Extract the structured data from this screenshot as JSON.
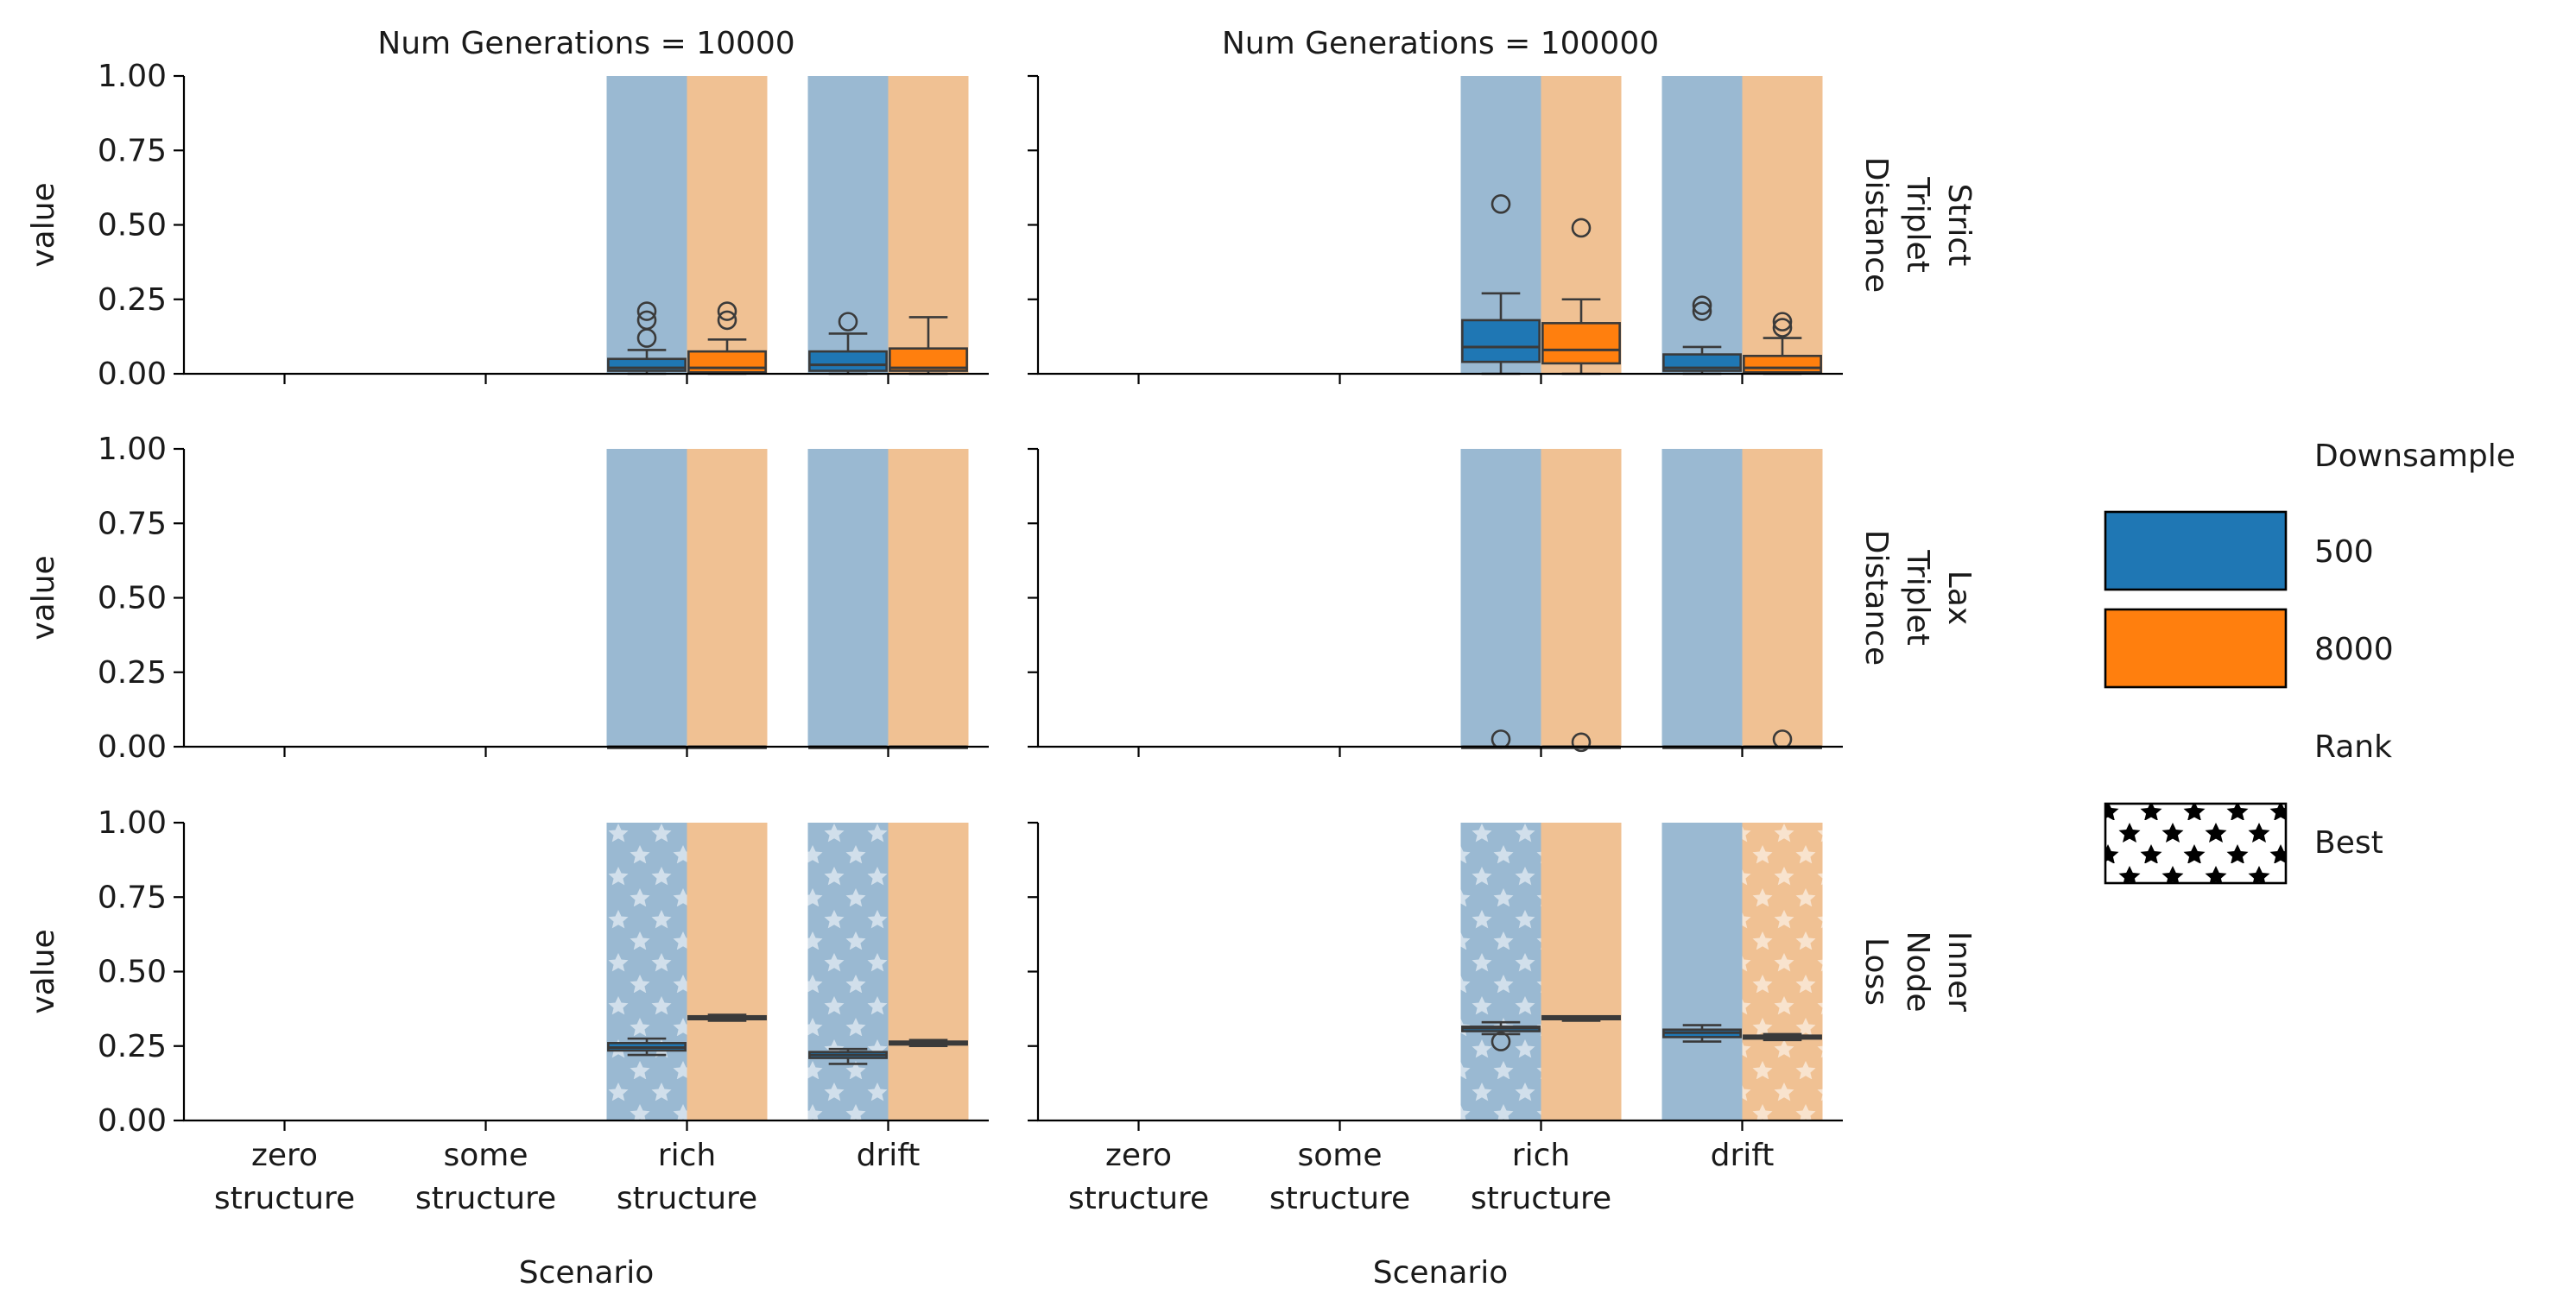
{
  "chart_data": {
    "type": "box",
    "layout": "facet-grid",
    "column_titles": [
      "Num Generations = 10000",
      "Num Generations = 100000"
    ],
    "row_titles": [
      [
        "Strict",
        "Triplet",
        "Distance"
      ],
      [
        "Lax",
        "Triplet",
        "Distance"
      ],
      [
        "Inner",
        "Node",
        "Loss"
      ]
    ],
    "xlabel": "Scenario",
    "ylabel": "value",
    "ylim": [
      0,
      1
    ],
    "yticks": [
      "0.00",
      "0.25",
      "0.50",
      "0.75",
      "1.00"
    ],
    "categories": [
      [
        "zero",
        "structure"
      ],
      [
        "some",
        "structure"
      ],
      [
        "rich",
        "structure"
      ],
      [
        "drift"
      ]
    ],
    "hue_values": [
      "500",
      "8000"
    ],
    "colors": {
      "500": "#1f77b4",
      "8000": "#ff7f0e",
      "bg500": "#9ab9d2",
      "bg8000": "#f0c193"
    },
    "legend": {
      "placement": "right",
      "hue_title": "Downsample",
      "hue_entries": [
        "500",
        "8000"
      ],
      "rank_title": "Rank",
      "rank_entries": [
        "Best"
      ]
    },
    "panels": [
      {
        "row": 0,
        "col": 0,
        "background": [
          2,
          3
        ],
        "star": [],
        "boxes": [
          {
            "cat": 2,
            "hue": 0,
            "q1": 0.01,
            "med": 0.02,
            "q3": 0.05,
            "lo": 0.0,
            "hi": 0.08,
            "fliers": [
              0.12,
              0.18,
              0.21
            ]
          },
          {
            "cat": 2,
            "hue": 1,
            "q1": 0.005,
            "med": 0.02,
            "q3": 0.075,
            "lo": 0.0,
            "hi": 0.115,
            "fliers": [
              0.18,
              0.21
            ]
          },
          {
            "cat": 3,
            "hue": 0,
            "q1": 0.01,
            "med": 0.03,
            "q3": 0.075,
            "lo": 0.0,
            "hi": 0.135,
            "fliers": [
              0.175
            ]
          },
          {
            "cat": 3,
            "hue": 1,
            "q1": 0.01,
            "med": 0.02,
            "q3": 0.085,
            "lo": 0.0,
            "hi": 0.19,
            "fliers": []
          }
        ]
      },
      {
        "row": 0,
        "col": 1,
        "background": [
          2,
          3
        ],
        "star": [],
        "boxes": [
          {
            "cat": 2,
            "hue": 0,
            "q1": 0.04,
            "med": 0.09,
            "q3": 0.18,
            "lo": 0.0,
            "hi": 0.27,
            "fliers": [
              0.57
            ]
          },
          {
            "cat": 2,
            "hue": 1,
            "q1": 0.035,
            "med": 0.08,
            "q3": 0.17,
            "lo": 0.0,
            "hi": 0.25,
            "fliers": [
              0.49
            ]
          },
          {
            "cat": 3,
            "hue": 0,
            "q1": 0.01,
            "med": 0.02,
            "q3": 0.065,
            "lo": 0.0,
            "hi": 0.09,
            "fliers": [
              0.21,
              0.23
            ]
          },
          {
            "cat": 3,
            "hue": 1,
            "q1": 0.005,
            "med": 0.02,
            "q3": 0.06,
            "lo": 0.0,
            "hi": 0.12,
            "fliers": [
              0.155,
              0.175
            ]
          }
        ]
      },
      {
        "row": 1,
        "col": 0,
        "background": [
          2,
          3
        ],
        "star": [],
        "boxes": [
          {
            "cat": 2,
            "hue": 0,
            "q1": 0.0,
            "med": 0.0,
            "q3": 0.0,
            "lo": 0.0,
            "hi": 0.0,
            "fliers": []
          },
          {
            "cat": 2,
            "hue": 1,
            "q1": 0.0,
            "med": 0.0,
            "q3": 0.0,
            "lo": 0.0,
            "hi": 0.0,
            "fliers": []
          },
          {
            "cat": 3,
            "hue": 0,
            "q1": 0.0,
            "med": 0.0,
            "q3": 0.0,
            "lo": 0.0,
            "hi": 0.0,
            "fliers": []
          },
          {
            "cat": 3,
            "hue": 1,
            "q1": 0.0,
            "med": 0.0,
            "q3": 0.0,
            "lo": 0.0,
            "hi": 0.0,
            "fliers": []
          }
        ]
      },
      {
        "row": 1,
        "col": 1,
        "background": [
          2,
          3
        ],
        "star": [],
        "boxes": [
          {
            "cat": 2,
            "hue": 0,
            "q1": 0.0,
            "med": 0.0,
            "q3": 0.0,
            "lo": 0.0,
            "hi": 0.0,
            "fliers": [
              0.025
            ]
          },
          {
            "cat": 2,
            "hue": 1,
            "q1": 0.0,
            "med": 0.0,
            "q3": 0.0,
            "lo": 0.0,
            "hi": 0.0,
            "fliers": [
              0.015
            ]
          },
          {
            "cat": 3,
            "hue": 0,
            "q1": 0.0,
            "med": 0.0,
            "q3": 0.0,
            "lo": 0.0,
            "hi": 0.0,
            "fliers": []
          },
          {
            "cat": 3,
            "hue": 1,
            "q1": 0.0,
            "med": 0.0,
            "q3": 0.0,
            "lo": 0.0,
            "hi": 0.0,
            "fliers": [
              0.025
            ]
          }
        ]
      },
      {
        "row": 2,
        "col": 0,
        "background": [
          2,
          3
        ],
        "star": [
          [
            2,
            0
          ],
          [
            3,
            0
          ]
        ],
        "boxes": [
          {
            "cat": 2,
            "hue": 0,
            "q1": 0.235,
            "med": 0.245,
            "q3": 0.26,
            "lo": 0.22,
            "hi": 0.275,
            "fliers": []
          },
          {
            "cat": 2,
            "hue": 1,
            "q1": 0.34,
            "med": 0.345,
            "q3": 0.35,
            "lo": 0.335,
            "hi": 0.355,
            "fliers": []
          },
          {
            "cat": 3,
            "hue": 0,
            "q1": 0.21,
            "med": 0.22,
            "q3": 0.23,
            "lo": 0.19,
            "hi": 0.24,
            "fliers": []
          },
          {
            "cat": 3,
            "hue": 1,
            "q1": 0.255,
            "med": 0.26,
            "q3": 0.265,
            "lo": 0.25,
            "hi": 0.27,
            "fliers": []
          }
        ]
      },
      {
        "row": 2,
        "col": 1,
        "background": [
          2,
          3
        ],
        "star": [
          [
            2,
            0
          ],
          [
            3,
            1
          ]
        ],
        "boxes": [
          {
            "cat": 2,
            "hue": 0,
            "q1": 0.3,
            "med": 0.31,
            "q3": 0.315,
            "lo": 0.29,
            "hi": 0.33,
            "fliers": [
              0.265
            ]
          },
          {
            "cat": 2,
            "hue": 1,
            "q1": 0.34,
            "med": 0.345,
            "q3": 0.35,
            "lo": 0.335,
            "hi": 0.35,
            "fliers": []
          },
          {
            "cat": 3,
            "hue": 0,
            "q1": 0.28,
            "med": 0.295,
            "q3": 0.305,
            "lo": 0.265,
            "hi": 0.32,
            "fliers": []
          },
          {
            "cat": 3,
            "hue": 1,
            "q1": 0.275,
            "med": 0.28,
            "q3": 0.285,
            "lo": 0.27,
            "hi": 0.29,
            "fliers": []
          }
        ]
      }
    ]
  }
}
